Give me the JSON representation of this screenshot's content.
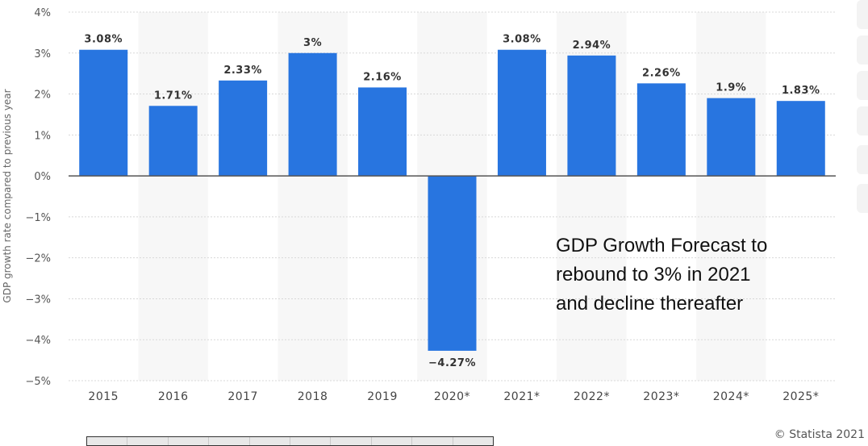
{
  "chart_data": {
    "type": "bar",
    "categories": [
      "2015",
      "2016",
      "2017",
      "2018",
      "2019",
      "2020*",
      "2021*",
      "2022*",
      "2023*",
      "2024*",
      "2025*"
    ],
    "values": [
      3.08,
      1.71,
      2.33,
      3.0,
      2.16,
      -4.27,
      3.08,
      2.94,
      2.26,
      1.9,
      1.83
    ],
    "data_labels": [
      "3.08%",
      "1.71%",
      "2.33%",
      "3%",
      "2.16%",
      "−4.27%",
      "3.08%",
      "2.94%",
      "2.26%",
      "1.9%",
      "1.83%"
    ],
    "y_ticks": [
      4,
      3,
      2,
      1,
      0,
      -1,
      -2,
      -3,
      -4,
      -5
    ],
    "y_tick_labels": [
      "4%",
      "3%",
      "2%",
      "1%",
      "0%",
      "−1%",
      "−2%",
      "−3%",
      "−4%",
      "−5%"
    ],
    "ylim": [
      -5,
      4
    ],
    "ylabel": "GDP growth rate compared to previous year",
    "xlabel": "",
    "grid": true,
    "bar_color": "#2875e0",
    "band_color": "#f7f7f7"
  },
  "annotation": {
    "lines": [
      "GDP Growth Forecast to",
      "rebound to 3% in 2021",
      "and decline thereafter"
    ]
  },
  "credit": "© Statista 2021"
}
